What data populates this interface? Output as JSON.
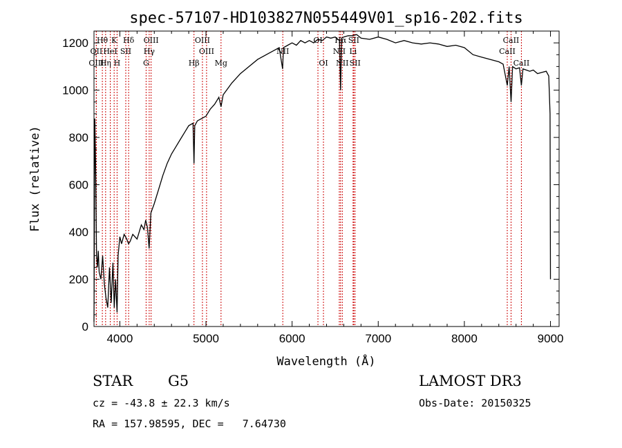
{
  "chart_data": {
    "type": "line",
    "title": "spec-57107-HD103827N055449V01_sp16-202.fits",
    "xlabel": "Wavelength (Å)",
    "ylabel": "Flux (relative)",
    "xlim": [
      3700,
      9100
    ],
    "ylim": [
      0,
      1250
    ],
    "xticks": [
      4000,
      5000,
      6000,
      7000,
      8000,
      9000
    ],
    "yticks": [
      0,
      200,
      400,
      600,
      800,
      1000,
      1200
    ],
    "series": [
      {
        "name": "spectrum",
        "x": [
          3700,
          3710,
          3720,
          3730,
          3740,
          3750,
          3760,
          3780,
          3800,
          3820,
          3840,
          3860,
          3880,
          3900,
          3920,
          3935,
          3950,
          3968,
          3980,
          4000,
          4020,
          4050,
          4080,
          4101,
          4120,
          4150,
          4200,
          4250,
          4280,
          4300,
          4320,
          4340,
          4360,
          4400,
          4450,
          4500,
          4550,
          4600,
          4650,
          4700,
          4750,
          4800,
          4850,
          4861,
          4870,
          4900,
          4950,
          5000,
          5050,
          5100,
          5150,
          5175,
          5200,
          5300,
          5400,
          5500,
          5600,
          5700,
          5800,
          5850,
          5890,
          5900,
          5950,
          6000,
          6050,
          6100,
          6150,
          6200,
          6250,
          6300,
          6350,
          6400,
          6450,
          6500,
          6550,
          6563,
          6575,
          6600,
          6650,
          6700,
          6750,
          6800,
          6900,
          7000,
          7100,
          7200,
          7300,
          7400,
          7500,
          7600,
          7700,
          7800,
          7900,
          8000,
          8100,
          8200,
          8300,
          8400,
          8450,
          8498,
          8520,
          8542,
          8560,
          8600,
          8640,
          8662,
          8680,
          8720,
          8760,
          8800,
          8850,
          8900,
          8950,
          8980,
          8995,
          9000
        ],
        "values": [
          20,
          880,
          650,
          300,
          250,
          320,
          230,
          200,
          300,
          180,
          120,
          80,
          250,
          100,
          270,
          80,
          200,
          60,
          300,
          380,
          350,
          390,
          370,
          350,
          360,
          390,
          370,
          430,
          410,
          450,
          420,
          330,
          480,
          520,
          580,
          640,
          690,
          730,
          760,
          790,
          820,
          850,
          860,
          690,
          850,
          870,
          880,
          890,
          920,
          940,
          970,
          930,
          980,
          1030,
          1070,
          1100,
          1130,
          1150,
          1170,
          1180,
          1090,
          1180,
          1190,
          1200,
          1190,
          1210,
          1200,
          1210,
          1200,
          1215,
          1210,
          1225,
          1220,
          1225,
          1210,
          1000,
          1220,
          1225,
          1230,
          1230,
          1235,
          1220,
          1215,
          1225,
          1215,
          1200,
          1210,
          1200,
          1195,
          1200,
          1195,
          1185,
          1190,
          1180,
          1150,
          1140,
          1130,
          1120,
          1110,
          1020,
          1100,
          950,
          1100,
          1090,
          1095,
          1020,
          1090,
          1085,
          1080,
          1085,
          1070,
          1075,
          1080,
          1060,
          900,
          200
        ]
      }
    ],
    "lines": [
      {
        "name": "Hθ",
        "wl": 3797,
        "row": 0
      },
      {
        "name": "OII",
        "wl": 3727,
        "row": 1
      },
      {
        "name": "OIII",
        "wl": 3727,
        "row": 2
      },
      {
        "name": "K",
        "wl": 3934,
        "row": 0
      },
      {
        "name": "HeI",
        "wl": 3889,
        "row": 1
      },
      {
        "name": "Hη",
        "wl": 3835,
        "row": 2
      },
      {
        "name": "Hδ",
        "wl": 4102,
        "row": 0
      },
      {
        "name": "SII",
        "wl": 4069,
        "row": 1
      },
      {
        "name": "H",
        "wl": 3968,
        "row": 2
      },
      {
        "name": "OIII",
        "wl": 4363,
        "row": 0
      },
      {
        "name": "Hγ",
        "wl": 4341,
        "row": 1
      },
      {
        "name": "G",
        "wl": 4305,
        "row": 2
      },
      {
        "name": "OIII",
        "wl": 4959,
        "row": 0
      },
      {
        "name": "OIII",
        "wl": 5007,
        "row": 1
      },
      {
        "name": "Hβ",
        "wl": 4861,
        "row": 2
      },
      {
        "name": "Mg",
        "wl": 5175,
        "row": 2
      },
      {
        "name": "NII",
        "wl": 5892,
        "row": 1
      },
      {
        "name": "OI",
        "wl": 6300,
        "row": 0
      },
      {
        "name": "OI",
        "wl": 6364,
        "row": 2
      },
      {
        "name": "Hα",
        "wl": 6563,
        "row": 0
      },
      {
        "name": "NII",
        "wl": 6548,
        "row": 1
      },
      {
        "name": "NII",
        "wl": 6583,
        "row": 2
      },
      {
        "name": "SII",
        "wl": 6716,
        "row": 0
      },
      {
        "name": "Li",
        "wl": 6708,
        "row": 1
      },
      {
        "name": "SII",
        "wl": 6731,
        "row": 2
      },
      {
        "name": "CaII",
        "wl": 8542,
        "row": 0
      },
      {
        "name": "CaII",
        "wl": 8498,
        "row": 1
      },
      {
        "name": "CaII",
        "wl": 8662,
        "row": 2
      }
    ],
    "line_color": "#cc0000"
  },
  "info": {
    "class": "STAR",
    "subclass": "G5",
    "survey": "LAMOST DR3",
    "cz": "cz = -43.8 ± 22.3 km/s",
    "obs_date": "Obs-Date: 20150325",
    "coords": "RA = 157.98595, DEC =   7.64730"
  }
}
